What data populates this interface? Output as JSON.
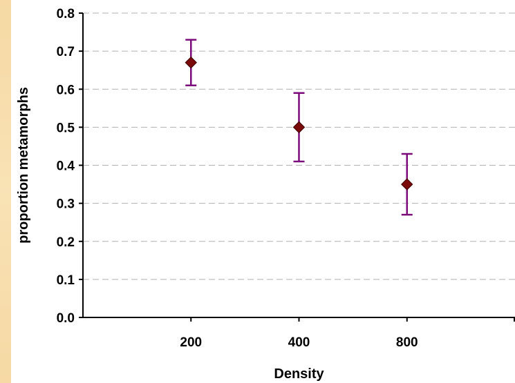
{
  "chart_data": {
    "type": "scatter",
    "xlabel": "Density",
    "ylabel": "proportion metamorphs",
    "categories": [
      "200",
      "400",
      "800"
    ],
    "ylim": [
      0,
      0.8
    ],
    "yticks": [
      "0.0",
      "0.1",
      "0.2",
      "0.3",
      "0.4",
      "0.5",
      "0.6",
      "0.7",
      "0.8"
    ],
    "grid": "horizontal dashed",
    "series": [
      {
        "values": [
          0.67,
          0.5,
          0.35
        ],
        "error_low": [
          0.61,
          0.41,
          0.27
        ],
        "error_high": [
          0.73,
          0.59,
          0.43
        ]
      }
    ],
    "colors": {
      "marker_fill": "#7b0a0a",
      "marker_edge": "#3a0000",
      "error_bar": "#7b0a7b",
      "grid": "#b0b0b0",
      "strip": "#f6d9a4"
    }
  }
}
